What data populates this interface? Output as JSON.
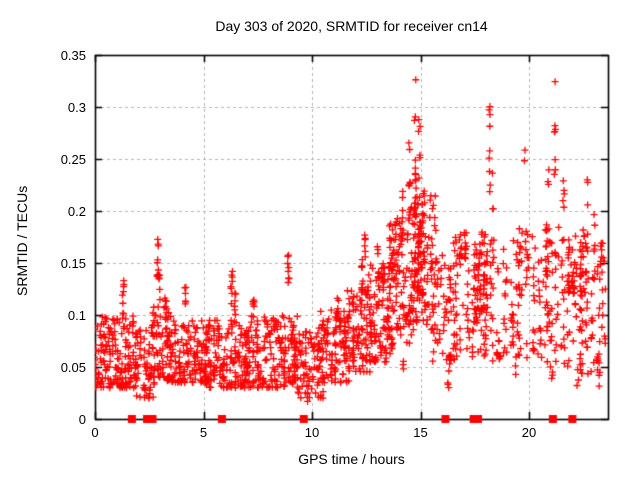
{
  "chart_data": {
    "type": "scatter",
    "title": "Day 303 of 2020, SRMTID for receiver cn14",
    "xlabel": "GPS time / hours",
    "ylabel": "SRMTID / TECUs",
    "xlim": [
      0,
      23.64
    ],
    "ylim": [
      0,
      0.35
    ],
    "xticks": [
      {
        "value": 0,
        "label": "0"
      },
      {
        "value": 5,
        "label": "5"
      },
      {
        "value": 10,
        "label": "10"
      },
      {
        "value": 15,
        "label": "15"
      },
      {
        "value": 20,
        "label": "20"
      }
    ],
    "yticks": [
      {
        "value": 0.0,
        "label": "0"
      },
      {
        "value": 0.05,
        "label": "0.05"
      },
      {
        "value": 0.1,
        "label": "0.1"
      },
      {
        "value": 0.15,
        "label": "0.15"
      },
      {
        "value": 0.2,
        "label": "0.2"
      },
      {
        "value": 0.25,
        "label": "0.25"
      },
      {
        "value": 0.3,
        "label": "0.3"
      },
      {
        "value": 0.35,
        "label": "0.35"
      }
    ],
    "grid": true,
    "legend_position": "none",
    "marker": {
      "symbol": "plus",
      "color": "#ff0000",
      "size": 7
    },
    "colors": {
      "axis": "#000000",
      "grid": "#b4b4b4",
      "background": "#ffffff"
    },
    "seed": 20303,
    "point_clusters_note": "scatter summarized as generative clusters read from the plot; bands=[t_start,t_end,t_step,n_per_cluster,y_min,y_max,t_jitter,low_bias_k], columns=[t,n,y_min,y_max,t_jitter,low_bias_k]",
    "bands": [
      [
        0.05,
        2.0,
        0.18,
        16,
        0.03,
        0.1,
        0.26,
        1.5
      ],
      [
        2.0,
        2.6,
        0.2,
        12,
        0.02,
        0.092,
        0.26,
        1.4
      ],
      [
        2.6,
        3.4,
        0.2,
        14,
        0.04,
        0.11,
        0.26,
        1.4
      ],
      [
        3.4,
        5.2,
        0.2,
        15,
        0.035,
        0.095,
        0.26,
        1.5
      ],
      [
        5.2,
        7.0,
        0.2,
        15,
        0.03,
        0.095,
        0.26,
        1.5
      ],
      [
        7.0,
        9.2,
        0.2,
        15,
        0.03,
        0.1,
        0.26,
        1.5
      ],
      [
        9.2,
        10.4,
        0.2,
        13,
        0.02,
        0.085,
        0.26,
        1.3
      ],
      [
        10.4,
        11.6,
        0.2,
        15,
        0.035,
        0.105,
        0.26,
        1.4
      ],
      [
        11.6,
        12.6,
        0.2,
        16,
        0.045,
        0.125,
        0.26,
        1.3
      ],
      [
        12.6,
        13.6,
        0.2,
        16,
        0.055,
        0.15,
        0.26,
        1.3
      ],
      [
        13.6,
        14.6,
        0.2,
        14,
        0.07,
        0.185,
        0.26,
        1.2
      ],
      [
        14.6,
        15.6,
        0.2,
        15,
        0.09,
        0.215,
        0.26,
        1.2
      ],
      [
        15.6,
        16.6,
        0.25,
        12,
        0.055,
        0.16,
        0.22,
        1.2
      ],
      [
        16.6,
        18.0,
        0.28,
        14,
        0.06,
        0.18,
        0.18,
        1.1
      ],
      [
        18.0,
        19.6,
        0.3,
        13,
        0.055,
        0.175,
        0.18,
        1.1
      ],
      [
        19.6,
        21.0,
        0.3,
        13,
        0.055,
        0.185,
        0.18,
        1.1
      ],
      [
        21.0,
        22.4,
        0.28,
        13,
        0.05,
        0.185,
        0.18,
        1.1
      ],
      [
        22.4,
        23.55,
        0.26,
        12,
        0.04,
        0.17,
        0.18,
        1.1
      ]
    ],
    "columns": [
      [
        1.3,
        8,
        0.1,
        0.135,
        0.1,
        1
      ],
      [
        2.9,
        9,
        0.125,
        0.175,
        0.08,
        1
      ],
      [
        2.95,
        7,
        0.095,
        0.14,
        0.1,
        1
      ],
      [
        3.25,
        6,
        0.092,
        0.118,
        0.08,
        1
      ],
      [
        4.15,
        6,
        0.098,
        0.127,
        0.08,
        1
      ],
      [
        6.3,
        8,
        0.105,
        0.147,
        0.08,
        1
      ],
      [
        6.45,
        6,
        0.09,
        0.125,
        0.08,
        1
      ],
      [
        7.3,
        5,
        0.092,
        0.115,
        0.08,
        1
      ],
      [
        8.9,
        8,
        0.118,
        0.158,
        0.08,
        1
      ],
      [
        9.8,
        4,
        0.015,
        0.032,
        0.15,
        1
      ],
      [
        11.2,
        5,
        0.1,
        0.125,
        0.08,
        1
      ],
      [
        12.3,
        9,
        0.115,
        0.155,
        0.1,
        1
      ],
      [
        12.45,
        6,
        0.15,
        0.178,
        0.06,
        1
      ],
      [
        13.05,
        8,
        0.125,
        0.168,
        0.08,
        1
      ],
      [
        13.3,
        6,
        0.12,
        0.152,
        0.06,
        1
      ],
      [
        13.6,
        9,
        0.145,
        0.2,
        0.1,
        1
      ],
      [
        13.9,
        16,
        0.13,
        0.2,
        0.3,
        1.2
      ],
      [
        14.15,
        8,
        0.165,
        0.24,
        0.08,
        1
      ],
      [
        14.2,
        3,
        0.03,
        0.06,
        0.08,
        1
      ],
      [
        14.5,
        11,
        0.185,
        0.272,
        0.08,
        1
      ],
      [
        14.75,
        15,
        0.195,
        0.318,
        0.1,
        1
      ],
      [
        14.78,
        1,
        0.322,
        0.327,
        0.02,
        1
      ],
      [
        14.8,
        18,
        0.12,
        0.22,
        0.25,
        1.1
      ],
      [
        14.95,
        9,
        0.17,
        0.3,
        0.08,
        1
      ],
      [
        15.0,
        22,
        0.1,
        0.2,
        0.3,
        1.2
      ],
      [
        15.15,
        8,
        0.15,
        0.22,
        0.08,
        1
      ],
      [
        16.3,
        5,
        0.028,
        0.062,
        0.1,
        1
      ],
      [
        16.35,
        5,
        0.12,
        0.155,
        0.08,
        1
      ],
      [
        17.05,
        6,
        0.15,
        0.205,
        0.08,
        1
      ],
      [
        17.6,
        24,
        0.09,
        0.165,
        0.3,
        1.2
      ],
      [
        17.9,
        18,
        0.1,
        0.18,
        0.25,
        1.1
      ],
      [
        18.2,
        9,
        0.195,
        0.302,
        0.08,
        1
      ],
      [
        18.35,
        6,
        0.15,
        0.25,
        0.08,
        1
      ],
      [
        19.4,
        3,
        0.04,
        0.06,
        0.1,
        1
      ],
      [
        19.8,
        2,
        0.24,
        0.263,
        0.05,
        1
      ],
      [
        20.8,
        16,
        0.12,
        0.19,
        0.3,
        1.1
      ],
      [
        20.9,
        3,
        0.22,
        0.247,
        0.06,
        1
      ],
      [
        21.05,
        3,
        0.035,
        0.055,
        0.08,
        1
      ],
      [
        21.2,
        7,
        0.235,
        0.295,
        0.07,
        1
      ],
      [
        21.2,
        1,
        0.322,
        0.327,
        0.02,
        1
      ],
      [
        21.6,
        6,
        0.17,
        0.23,
        0.08,
        1
      ],
      [
        21.9,
        16,
        0.12,
        0.185,
        0.3,
        1.1
      ],
      [
        22.25,
        3,
        0.03,
        0.05,
        0.08,
        1
      ],
      [
        22.4,
        8,
        0.12,
        0.165,
        0.1,
        1
      ],
      [
        22.6,
        14,
        0.12,
        0.185,
        0.25,
        1.1
      ],
      [
        22.7,
        3,
        0.2,
        0.25,
        0.06,
        1
      ],
      [
        23.0,
        6,
        0.13,
        0.2,
        0.1,
        1
      ],
      [
        23.2,
        4,
        0.03,
        0.06,
        0.1,
        1
      ],
      [
        23.3,
        6,
        0.12,
        0.17,
        0.1,
        1
      ]
    ],
    "baseline_markers": {
      "symbol": "square",
      "color": "#ff0000",
      "size": 8,
      "y": 0,
      "times": [
        1.7,
        2.4,
        2.65,
        5.85,
        9.62,
        16.15,
        17.45,
        17.65,
        21.1,
        22.0
      ]
    }
  }
}
